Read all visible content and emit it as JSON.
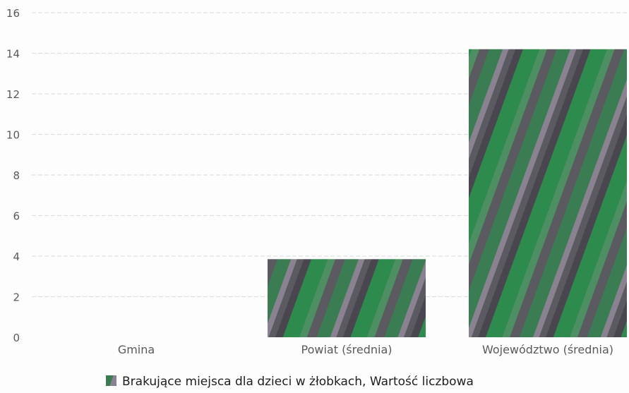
{
  "chart_data": {
    "type": "bar",
    "categories": [
      "Gmina",
      "Powiat (średnia)",
      "Województwo (średnia)"
    ],
    "series": [
      {
        "name": "Brakujące miejsca dla dzieci w żłobkach, Wartość liczbowa",
        "values": [
          0,
          3.85,
          14.2
        ],
        "color": "#3f7f55"
      }
    ],
    "yticks": [
      0,
      2,
      4,
      6,
      8,
      10,
      12,
      14,
      16
    ],
    "ylim": [
      0,
      16
    ],
    "grid": true,
    "legend_position": "bottom"
  }
}
